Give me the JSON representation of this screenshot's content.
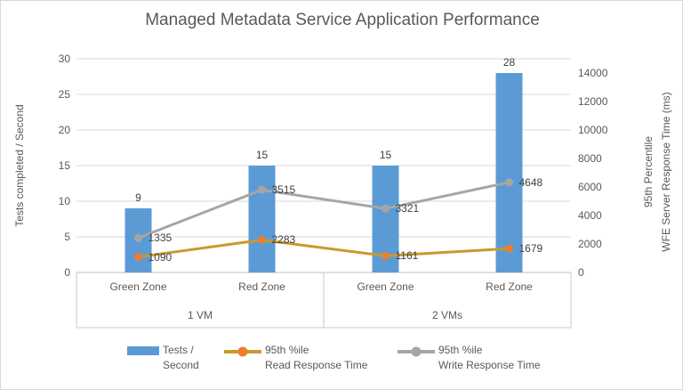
{
  "window": {
    "background": "#FFFFFF",
    "border_color": "#D9D9D9"
  },
  "chart_data": {
    "type": "combo-bar-line",
    "title": "Managed Metadata Service Application Performance",
    "categories": [
      "Green Zone",
      "Red Zone",
      "Green Zone",
      "Red Zone"
    ],
    "category_groups": [
      {
        "label": "1 VM",
        "span": 2
      },
      {
        "label": "2 VMs",
        "span": 2
      }
    ],
    "left_axis": {
      "title": "Tests completed / Second",
      "min": 0,
      "max": 30,
      "tick_step": 5,
      "ticks": [
        0,
        5,
        10,
        15,
        20,
        25,
        30
      ]
    },
    "right_axis": {
      "title_line1": "95th Percentile",
      "title_line2": "WFE Server Response Time (ms)",
      "min": 0,
      "max": 15000,
      "ticks": [
        0,
        2000,
        4000,
        6000,
        8000,
        10000,
        12000,
        14000
      ]
    },
    "series": [
      {
        "name": "Tests / Second",
        "type": "bar",
        "axis": "left",
        "color": "#5B9BD5",
        "values": [
          9,
          15,
          15,
          28
        ]
      },
      {
        "name": "95th %ile Read Response Time",
        "type": "line",
        "axis": "right",
        "line_color": "#C9992B",
        "marker_color": "#ED7D31",
        "stacked": false,
        "values": [
          1090,
          2283,
          1161,
          1679
        ]
      },
      {
        "name": "95th %ile Write Response Time",
        "type": "line",
        "axis": "right",
        "line_color": "#A6A6A6",
        "marker_color": "#A6A6A6",
        "stacked": true,
        "values": [
          1335,
          3515,
          3321,
          4648
        ]
      }
    ],
    "legend": [
      {
        "swatch": "bar",
        "color": "#5B9BD5",
        "label_line1": "Tests /",
        "label_line2": "Second"
      },
      {
        "swatch": "line-marker",
        "line_color": "#C9992B",
        "marker_color": "#ED7D31",
        "label_line1": "95th %ile",
        "label_line2": "Read Response Time"
      },
      {
        "swatch": "line-marker",
        "line_color": "#A6A6A6",
        "marker_color": "#A6A6A6",
        "label_line1": "95th %ile",
        "label_line2": "Write Response Time"
      }
    ],
    "grid": true,
    "legend_position": "bottom",
    "colors": {
      "gridline": "#D9D9D9",
      "axis_line": "#BFBFBF",
      "box_line": "#C9C9C9",
      "tick_text": "#595959",
      "data_label_text": "#404040"
    }
  }
}
